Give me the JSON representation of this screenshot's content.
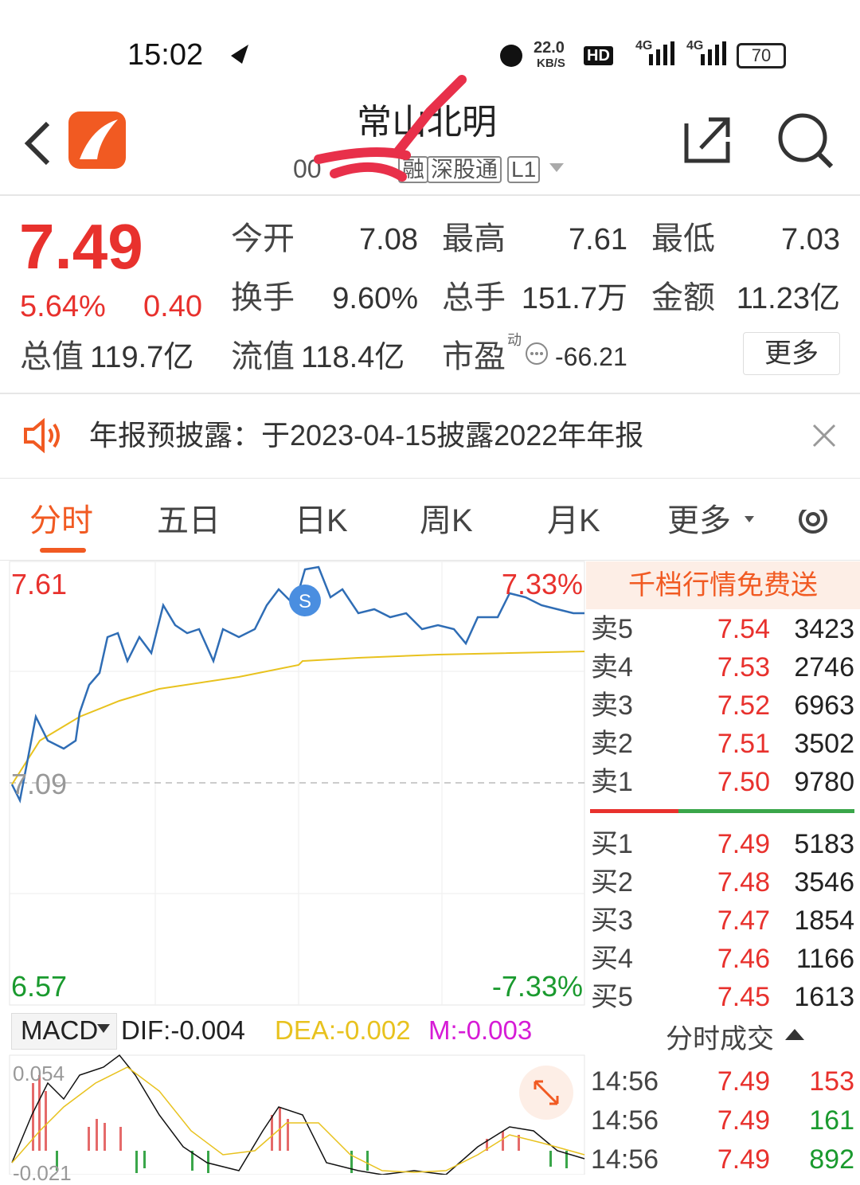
{
  "status_bar": {
    "time": "15:02",
    "speed": "22.0",
    "speed_unit": "KB/S",
    "hd": "HD",
    "net1": "4G",
    "net2": "4G",
    "battery": "70"
  },
  "header": {
    "title": "常山北明",
    "code": "00",
    "badges": [
      "融",
      "深股通",
      "L1"
    ]
  },
  "quote": {
    "price": "7.49",
    "change_pct": "5.64%",
    "change": "0.40",
    "fields": [
      {
        "label": "今开",
        "value": "7.08"
      },
      {
        "label": "最高",
        "value": "7.61"
      },
      {
        "label": "最低",
        "value": "7.03"
      },
      {
        "label": "换手",
        "value": "9.60%"
      },
      {
        "label": "总手",
        "value": "151.7万"
      },
      {
        "label": "金额",
        "value": "11.23亿"
      },
      {
        "label": "总值",
        "value": "119.7亿"
      },
      {
        "label": "流值",
        "value": "118.4亿"
      },
      {
        "label": "市盈",
        "value": "-66.21"
      }
    ],
    "pe_tag": "动",
    "more": "更多"
  },
  "notice": {
    "text": "年报预披露：于2023-04-15披露2022年年报"
  },
  "tabs": [
    "分时",
    "五日",
    "日K",
    "周K",
    "月K",
    "更多"
  ],
  "chart": {
    "high": "7.61",
    "high_pct": "7.33%",
    "prev_close": "7.09",
    "low": "6.57",
    "low_pct": "-7.33%",
    "macd": {
      "name": "MACD",
      "dif": "DIF:-0.004",
      "dea": "DEA:-0.002",
      "m": "M:-0.003",
      "top": "0.054",
      "bottom": "-0.021"
    }
  },
  "order_book": {
    "promo": "千档行情免费送",
    "sell": [
      {
        "label": "卖5",
        "price": "7.54",
        "volume": "3423"
      },
      {
        "label": "卖4",
        "price": "7.53",
        "volume": "2746"
      },
      {
        "label": "卖3",
        "price": "7.52",
        "volume": "6963"
      },
      {
        "label": "卖2",
        "price": "7.51",
        "volume": "3502"
      },
      {
        "label": "卖1",
        "price": "7.50",
        "volume": "9780"
      }
    ],
    "buy": [
      {
        "label": "买1",
        "price": "7.49",
        "volume": "5183"
      },
      {
        "label": "买2",
        "price": "7.48",
        "volume": "3546"
      },
      {
        "label": "买3",
        "price": "7.47",
        "volume": "1854"
      },
      {
        "label": "买4",
        "price": "7.46",
        "volume": "1166"
      },
      {
        "label": "买5",
        "price": "7.45",
        "volume": "1613"
      }
    ]
  },
  "trades": {
    "title": "分时成交",
    "rows": [
      {
        "time": "14:56",
        "price": "7.49",
        "volume": "153"
      },
      {
        "time": "14:56",
        "price": "7.49",
        "volume": "161"
      },
      {
        "time": "14:56",
        "price": "7.49",
        "volume": "892"
      }
    ]
  }
}
